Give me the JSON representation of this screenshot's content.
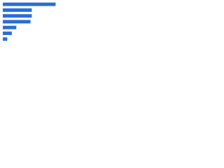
{
  "chart_data": {
    "type": "hbar",
    "values": [
      82,
      45,
      45,
      43,
      21,
      14,
      7
    ],
    "color": "#2a6ed6",
    "xlim": [
      0,
      100
    ]
  }
}
